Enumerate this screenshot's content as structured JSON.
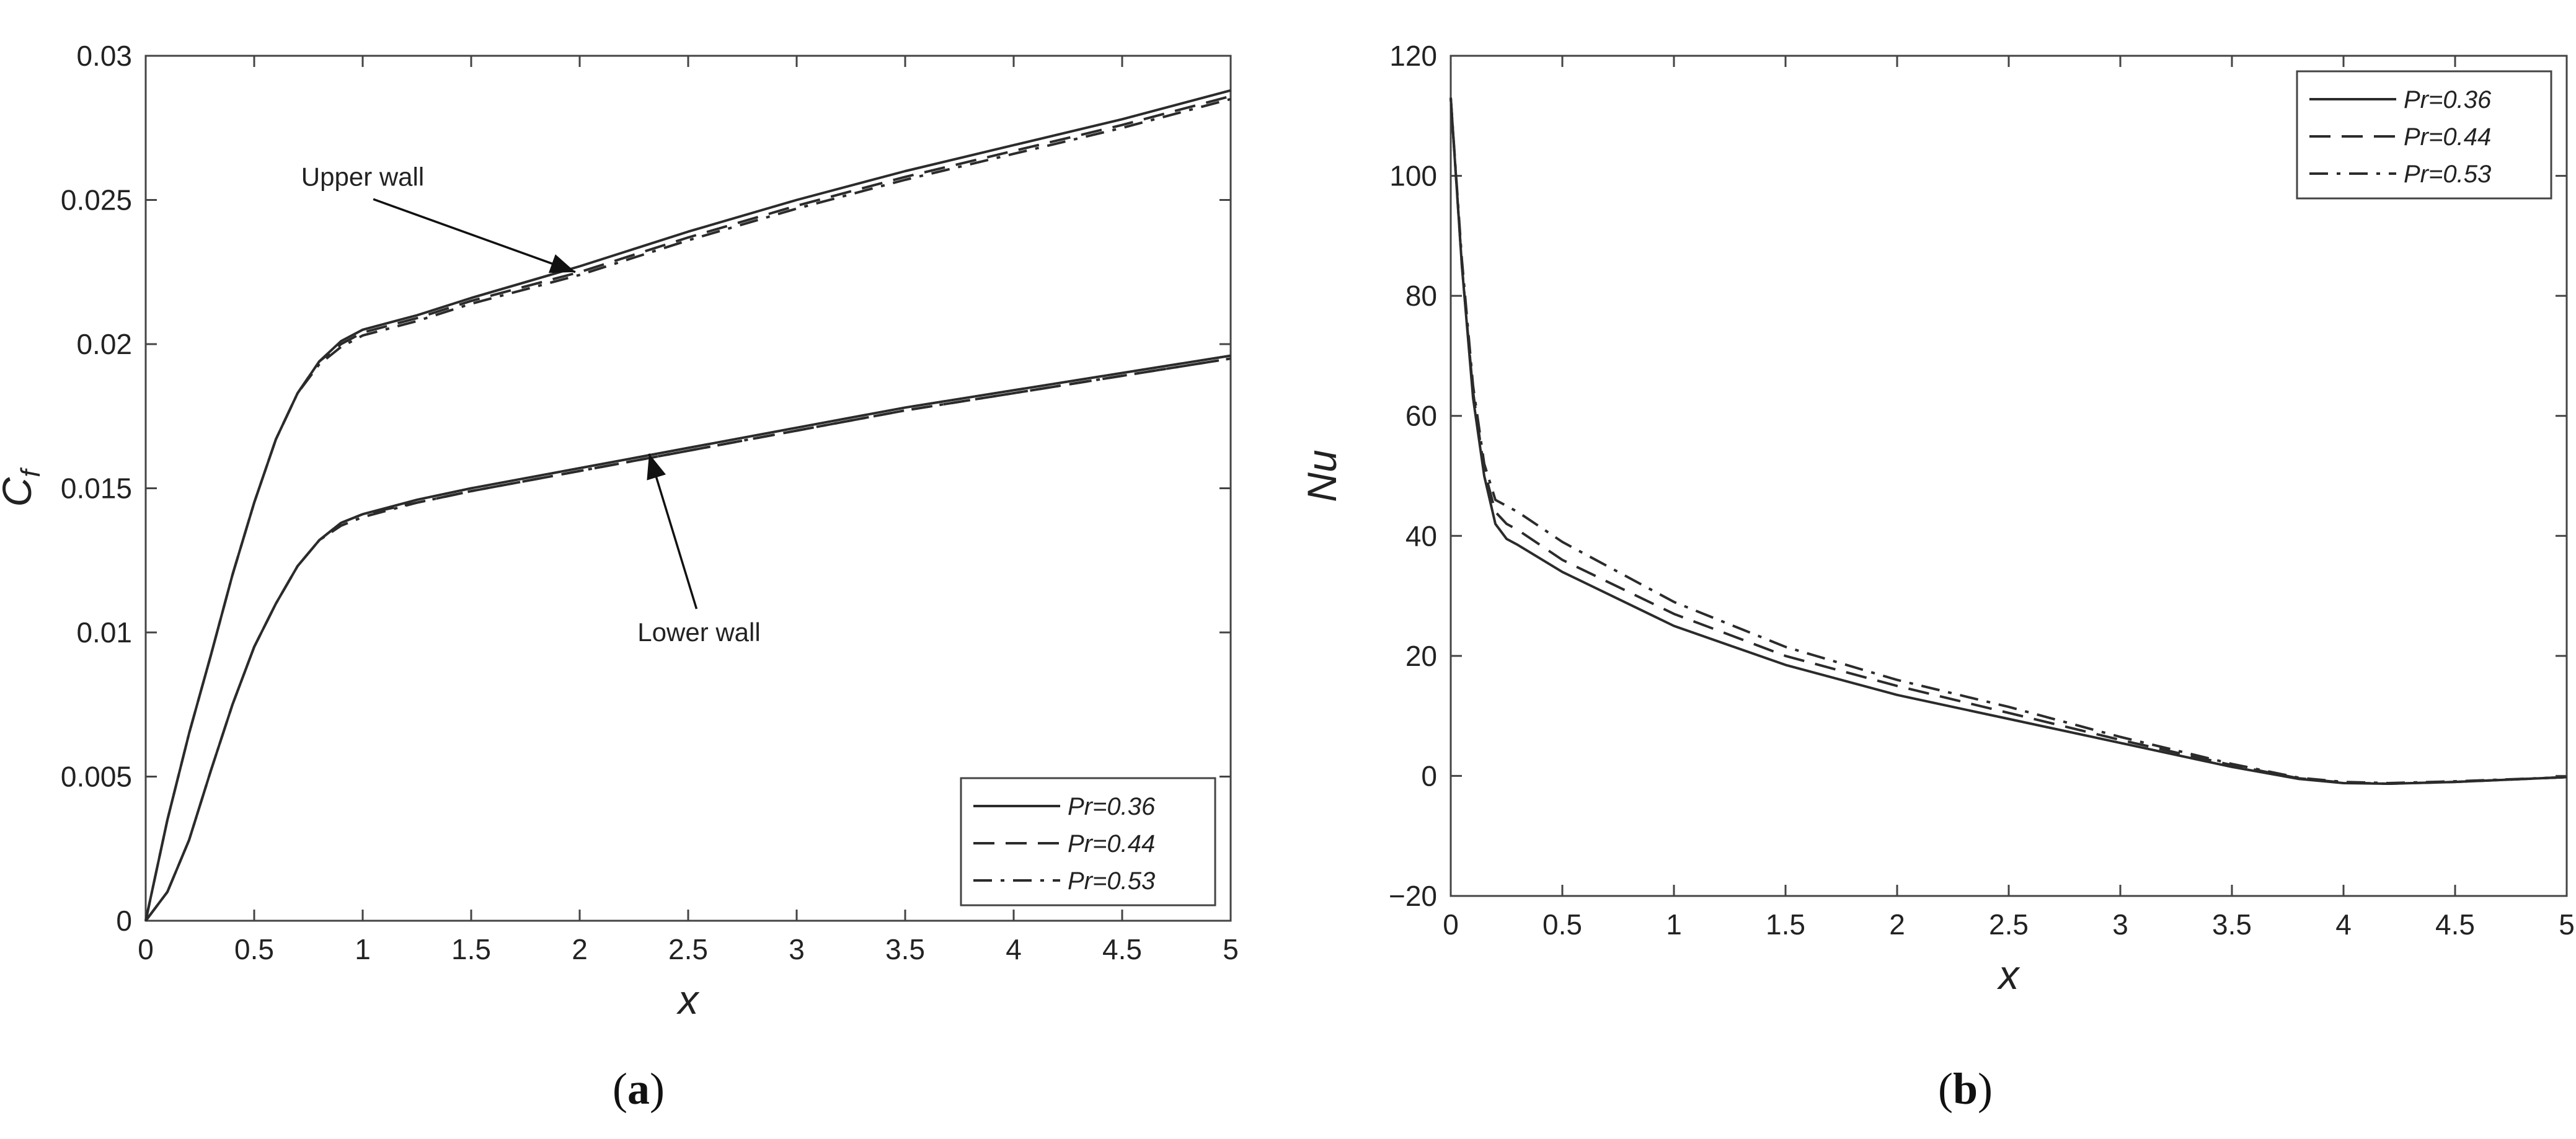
{
  "chart_data": [
    {
      "type": "line",
      "panel_label": "a",
      "xlabel": "x",
      "ylabel": "C",
      "ylabel_subscript": "f",
      "xlim": [
        0,
        5
      ],
      "ylim": [
        0,
        0.03
      ],
      "xticks": [
        "0",
        "0.5",
        "1",
        "1.5",
        "2",
        "2.5",
        "3",
        "3.5",
        "4",
        "4.5",
        "5"
      ],
      "yticks": [
        "0",
        "0.005",
        "0.01",
        "0.015",
        "0.02",
        "0.025",
        "0.03"
      ],
      "grid": false,
      "legend": {
        "position": "bottom-right",
        "entries": [
          {
            "label": "Pr=0.36",
            "style": "solid"
          },
          {
            "label": "Pr=0.44",
            "style": "dashed"
          },
          {
            "label": "Pr=0.53",
            "style": "dashdot"
          }
        ]
      },
      "annotations": [
        {
          "text": "Upper wall",
          "x": 1.0,
          "y": 0.0255,
          "arrow_to": [
            1.98,
            0.0225
          ]
        },
        {
          "text": "Lower wall",
          "x": 2.55,
          "y": 0.0097,
          "arrow_to": [
            2.32,
            0.0162
          ]
        }
      ],
      "x": [
        0,
        0.1,
        0.2,
        0.3,
        0.4,
        0.5,
        0.6,
        0.7,
        0.8,
        0.9,
        1.0,
        1.25,
        1.5,
        2.0,
        2.5,
        3.0,
        3.5,
        4.0,
        4.5,
        5.0
      ],
      "series": [
        {
          "group": "Upper wall",
          "style": "solid",
          "values": [
            0,
            0.0035,
            0.0065,
            0.0092,
            0.012,
            0.0145,
            0.0167,
            0.0183,
            0.0194,
            0.0201,
            0.0205,
            0.021,
            0.0216,
            0.0227,
            0.0239,
            0.025,
            0.026,
            0.0269,
            0.0278,
            0.0288
          ]
        },
        {
          "group": "Upper wall",
          "style": "dashed",
          "values": [
            0,
            0.0035,
            0.0065,
            0.0092,
            0.012,
            0.0145,
            0.0167,
            0.0183,
            0.0194,
            0.02,
            0.0204,
            0.0209,
            0.0215,
            0.0225,
            0.0237,
            0.0248,
            0.0258,
            0.0267,
            0.0276,
            0.0286
          ]
        },
        {
          "group": "Upper wall",
          "style": "dashdot",
          "values": [
            0,
            0.0035,
            0.0065,
            0.0092,
            0.012,
            0.0145,
            0.0167,
            0.0183,
            0.0193,
            0.0199,
            0.0203,
            0.0208,
            0.0214,
            0.0224,
            0.0236,
            0.0247,
            0.0257,
            0.0266,
            0.0275,
            0.0285
          ]
        },
        {
          "group": "Lower wall",
          "style": "solid",
          "values": [
            0,
            0.001,
            0.0028,
            0.0052,
            0.0075,
            0.0095,
            0.011,
            0.0123,
            0.0132,
            0.0138,
            0.0141,
            0.0146,
            0.015,
            0.0157,
            0.0164,
            0.0171,
            0.0178,
            0.0184,
            0.019,
            0.0196
          ]
        },
        {
          "group": "Lower wall",
          "style": "dashed",
          "values": [
            0,
            0.001,
            0.0028,
            0.0052,
            0.0075,
            0.0095,
            0.011,
            0.0123,
            0.0132,
            0.0138,
            0.0141,
            0.0145,
            0.0149,
            0.0156,
            0.0163,
            0.017,
            0.0177,
            0.0183,
            0.0189,
            0.0195
          ]
        },
        {
          "group": "Lower wall",
          "style": "dashdot",
          "values": [
            0,
            0.001,
            0.0028,
            0.0052,
            0.0075,
            0.0095,
            0.011,
            0.0123,
            0.0132,
            0.0137,
            0.014,
            0.0145,
            0.0149,
            0.0156,
            0.0163,
            0.017,
            0.0177,
            0.0183,
            0.0189,
            0.0195
          ]
        }
      ]
    },
    {
      "type": "line",
      "panel_label": "b",
      "xlabel": "x",
      "ylabel": "Nu",
      "xlim": [
        0,
        5
      ],
      "ylim": [
        -20,
        120
      ],
      "xticks": [
        "0",
        "0.5",
        "1",
        "1.5",
        "2",
        "2.5",
        "3",
        "3.5",
        "4",
        "4.5",
        "5"
      ],
      "yticks": [
        "−20",
        "0",
        "20",
        "40",
        "60",
        "80",
        "100",
        "120"
      ],
      "grid": false,
      "legend": {
        "position": "top-right",
        "entries": [
          {
            "label": "Pr=0.36",
            "style": "solid"
          },
          {
            "label": "Pr=0.44",
            "style": "dashed"
          },
          {
            "label": "Pr=0.53",
            "style": "dashdot"
          }
        ]
      },
      "x": [
        0,
        0.05,
        0.1,
        0.15,
        0.2,
        0.25,
        0.3,
        0.5,
        1.0,
        1.5,
        2.0,
        2.5,
        3.0,
        3.5,
        3.8,
        4.0,
        4.2,
        4.5,
        5.0
      ],
      "series": [
        {
          "style": "solid",
          "values": [
            113,
            85,
            63,
            50,
            42,
            39.5,
            38.5,
            34,
            25,
            18.5,
            13.5,
            9.5,
            5.5,
            1.5,
            -0.5,
            -1.2,
            -1.3,
            -1.0,
            -0.2
          ]
        },
        {
          "style": "dashed",
          "values": [
            113,
            85,
            64,
            51,
            44,
            42,
            41,
            36,
            27,
            20,
            15,
            10.5,
            6,
            1.8,
            -0.4,
            -1.1,
            -1.3,
            -1.0,
            -0.2
          ]
        },
        {
          "style": "dashdot",
          "values": [
            113,
            86,
            65,
            52,
            46,
            45,
            44,
            39,
            29,
            21.5,
            16,
            11.5,
            6.5,
            2,
            -0.3,
            -1.0,
            -1.2,
            -0.9,
            -0.2
          ]
        }
      ]
    }
  ]
}
